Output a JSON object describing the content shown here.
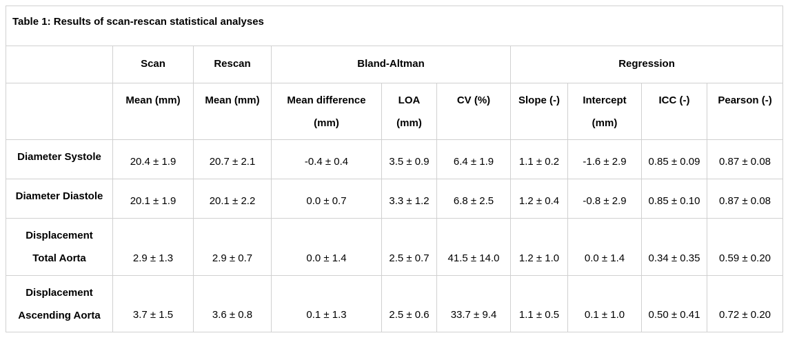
{
  "title": "Table 1: Results of scan-rescan statistical analyses",
  "chart_data": {
    "type": "table",
    "group_headers": [
      {
        "label": "Scan",
        "span": 1
      },
      {
        "label": "Rescan",
        "span": 1
      },
      {
        "label": "Bland-Altman",
        "span": 3
      },
      {
        "label": "Regression",
        "span": 4
      }
    ],
    "column_headers": [
      "Mean (mm)",
      "Mean (mm)",
      "Mean difference\n(mm)",
      "LOA\n(mm)",
      "CV (%)",
      "Slope (-)",
      "Intercept\n(mm)",
      "ICC (-)",
      "Pearson (-)"
    ],
    "rows": [
      {
        "label": "Diameter Systole",
        "values": [
          "20.4 ± 1.9",
          "20.7 ± 2.1",
          "-0.4 ± 0.4",
          "3.5 ± 0.9",
          "6.4 ± 1.9",
          "1.1 ± 0.2",
          "-1.6 ± 2.9",
          "0.85 ± 0.09",
          "0.87 ± 0.08"
        ]
      },
      {
        "label": "Diameter Diastole",
        "values": [
          "20.1 ± 1.9",
          "20.1 ± 2.2",
          "0.0 ± 0.7",
          "3.3 ± 1.2",
          "6.8 ± 2.5",
          "1.2 ± 0.4",
          "-0.8 ± 2.9",
          "0.85 ± 0.10",
          "0.87 ± 0.08"
        ]
      },
      {
        "label": "Displacement\nTotal Aorta",
        "values": [
          "2.9 ± 1.3",
          "2.9 ± 0.7",
          "0.0 ± 1.4",
          "2.5 ± 0.7",
          "41.5 ± 14.0",
          "1.2 ± 1.0",
          "0.0 ± 1.4",
          "0.34 ± 0.35",
          "0.59 ± 0.20"
        ]
      },
      {
        "label": "Displacement\nAscending Aorta",
        "values": [
          "3.7 ± 1.5",
          "3.6 ± 0.8",
          "0.1 ± 1.3",
          "2.5 ± 0.6",
          "33.7 ± 9.4",
          "1.1 ± 0.5",
          "0.1 ± 1.0",
          "0.50 ± 0.41",
          "0.72 ± 0.20"
        ]
      }
    ],
    "colors": {
      "border": "#d0d0d0",
      "text": "#000000",
      "background": "#ffffff"
    }
  }
}
